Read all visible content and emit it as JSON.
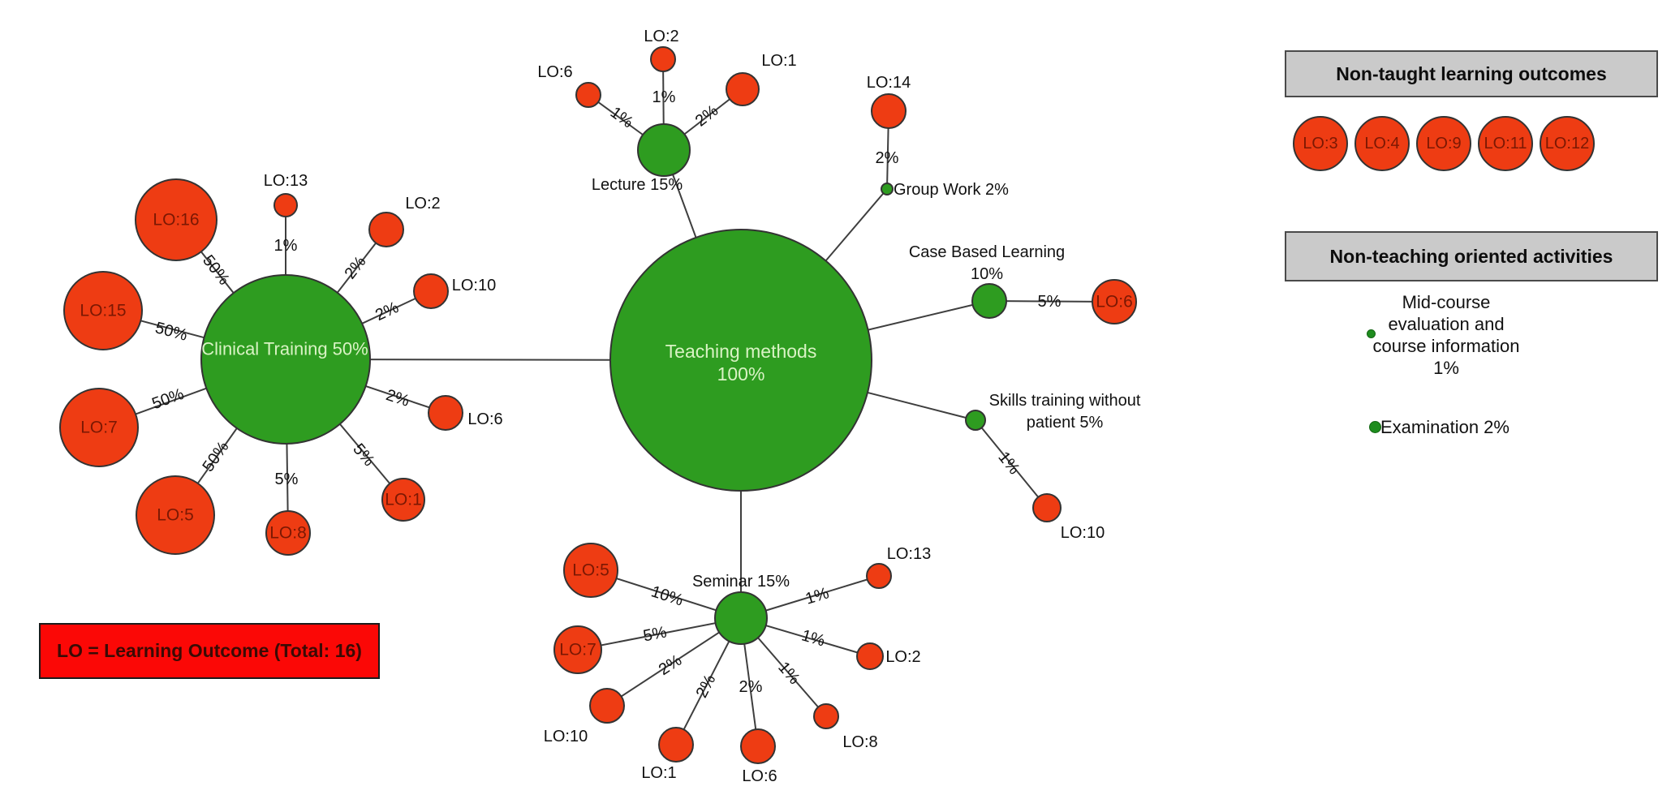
{
  "colors": {
    "green": "#2e9c20",
    "red": "#ee3c13",
    "legend_red": "#fb0806",
    "header_gray": "#cacaca",
    "edge": "#3e3e3e",
    "node_stroke": "#333333",
    "hub_text": "#d9f3c4",
    "lo_text": "#7b1803",
    "label_text": "#111111"
  },
  "legend_box": {
    "label": "LO = Learning Outcome (Total: 16)"
  },
  "center_node": {
    "lines": [
      "Teaching methods",
      "100%"
    ]
  },
  "hubs": {
    "clinical": {
      "label": "Clinical Training 50%",
      "satellites": [
        {
          "lo": "LO:16",
          "pct": "50%"
        },
        {
          "lo": "LO:13",
          "pct": "1%"
        },
        {
          "lo": "LO:2",
          "pct": "2%"
        },
        {
          "lo": "LO:10",
          "pct": "2%"
        },
        {
          "lo": "LO:15",
          "pct": "50%"
        },
        {
          "lo": "LO:7",
          "pct": "50%"
        },
        {
          "lo": "LO:6",
          "pct": "2%"
        },
        {
          "lo": "LO:1",
          "pct": "5%"
        },
        {
          "lo": "LO:5",
          "pct": "50%"
        },
        {
          "lo": "LO:8",
          "pct": "5%"
        }
      ]
    },
    "lecture": {
      "label": "Lecture 15%",
      "satellites": [
        {
          "lo": "LO:6",
          "pct": "1%"
        },
        {
          "lo": "LO:2",
          "pct": "1%"
        },
        {
          "lo": "LO:1",
          "pct": "2%"
        }
      ]
    },
    "group_work": {
      "label": "Group Work 2%",
      "satellites": [
        {
          "lo": "LO:14",
          "pct": "2%"
        }
      ]
    },
    "case_based": {
      "label_lines": [
        "Case Based Learning",
        "10%"
      ],
      "satellites": [
        {
          "lo": "LO:6",
          "pct": "5%"
        }
      ]
    },
    "skills": {
      "label_lines": [
        "Skills training without",
        "patient 5%"
      ],
      "satellites": [
        {
          "lo": "LO:10",
          "pct": "1%"
        }
      ]
    },
    "seminar": {
      "label": "Seminar 15%",
      "satellites": [
        {
          "lo": "LO:5",
          "pct": "10%"
        },
        {
          "lo": "LO:7",
          "pct": "5%"
        },
        {
          "lo": "LO:10",
          "pct": "2%"
        },
        {
          "lo": "LO:1",
          "pct": "2%"
        },
        {
          "lo": "LO:6",
          "pct": "2%"
        },
        {
          "lo": "LO:8",
          "pct": "1%"
        },
        {
          "lo": "LO:2",
          "pct": "1%"
        },
        {
          "lo": "LO:13",
          "pct": "1%"
        }
      ]
    }
  },
  "right_panel": {
    "non_taught": {
      "title": "Non-taught learning outcomes",
      "outcomes": [
        "LO:3",
        "LO:4",
        "LO:9",
        "LO:11",
        "LO:12"
      ]
    },
    "non_teaching": {
      "title": "Non-teaching oriented activities",
      "midcourse_lines": [
        "Mid-course",
        "evaluation and",
        "course information",
        "1%"
      ],
      "examination": "Examination 2%"
    }
  }
}
